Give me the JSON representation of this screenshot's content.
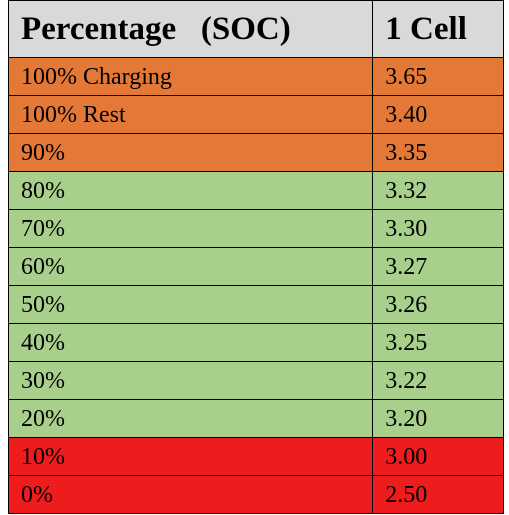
{
  "table": {
    "headers": [
      "Percentage   (SOC)",
      "1 Cell"
    ],
    "colors": {
      "header": "#d9d9d9",
      "orange": "#e37837",
      "green": "#a8cf8c",
      "red": "#ee1c1c"
    },
    "rows": [
      {
        "percentage": "100% Charging",
        "cell": "3.65",
        "color": "orange"
      },
      {
        "percentage": "100% Rest",
        "cell": "3.40",
        "color": "orange"
      },
      {
        "percentage": "90%",
        "cell": "3.35",
        "color": "orange"
      },
      {
        "percentage": "80%",
        "cell": "3.32",
        "color": "green"
      },
      {
        "percentage": "70%",
        "cell": "3.30",
        "color": "green"
      },
      {
        "percentage": "60%",
        "cell": "3.27",
        "color": "green"
      },
      {
        "percentage": "50%",
        "cell": "3.26",
        "color": "green"
      },
      {
        "percentage": "40%",
        "cell": "3.25",
        "color": "green"
      },
      {
        "percentage": "30%",
        "cell": "3.22",
        "color": "green"
      },
      {
        "percentage": "20%",
        "cell": "3.20",
        "color": "green"
      },
      {
        "percentage": "10%",
        "cell": "3.00",
        "color": "red"
      },
      {
        "percentage": "0%",
        "cell": "2.50",
        "color": "red"
      }
    ]
  }
}
